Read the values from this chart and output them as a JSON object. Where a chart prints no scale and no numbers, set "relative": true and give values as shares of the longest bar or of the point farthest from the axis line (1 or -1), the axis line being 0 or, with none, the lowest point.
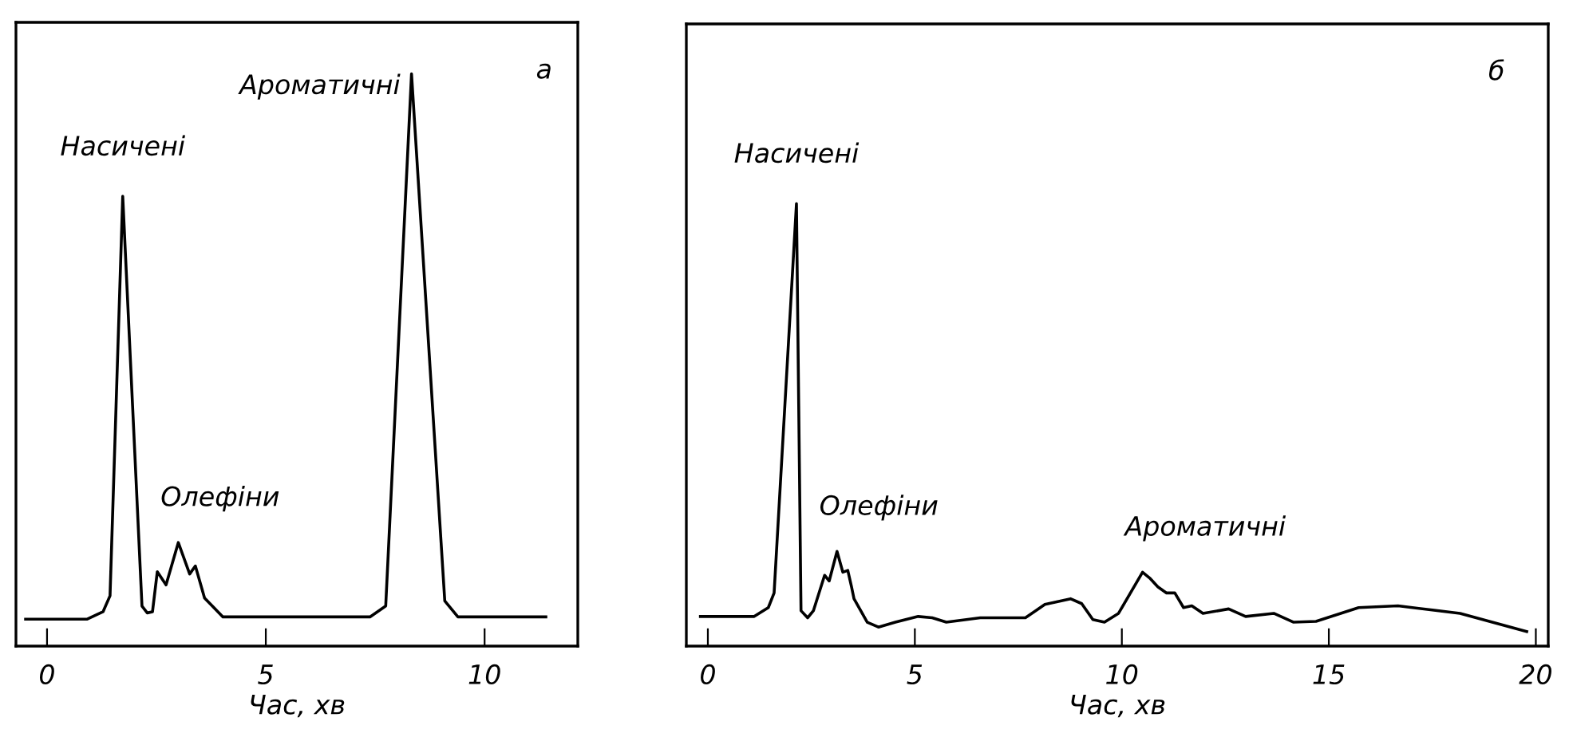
{
  "chart_data": [
    {
      "type": "line",
      "title": "а",
      "xlabel": "Час, хв",
      "relative": true,
      "xlim": [
        -0.71,
        12.13
      ],
      "xticks": [
        0,
        5,
        10
      ],
      "grid": false,
      "legend": false,
      "marker": "none",
      "line_style": "solid",
      "series": [
        {
          "color": "#000000",
          "x": [
            -0.49,
            0.91,
            1.28,
            1.44,
            1.73,
            2.17,
            2.29,
            2.41,
            2.52,
            2.72,
            3.0,
            3.26,
            3.39,
            3.6,
            4.02,
            7.38,
            7.74,
            8.33,
            9.09,
            9.39,
            11.4
          ],
          "values": [
            0.047,
            0.047,
            0.06,
            0.088,
            0.786,
            0.07,
            0.058,
            0.06,
            0.13,
            0.107,
            0.181,
            0.126,
            0.14,
            0.084,
            0.051,
            0.051,
            0.07,
            1.0,
            0.079,
            0.051,
            0.051
          ]
        }
      ],
      "annotations": [
        {
          "text": "Насичені",
          "x": 1.73,
          "y": 0.786
        },
        {
          "text": "Олефіни",
          "x": 3.0,
          "y": 0.181
        },
        {
          "text": "Ароматичні",
          "x": 8.33,
          "y": 1.0
        }
      ]
    },
    {
      "type": "line",
      "title": "б",
      "xlabel": "Час, хв",
      "relative": true,
      "xlim": [
        -0.52,
        20.3
      ],
      "xticks": [
        0,
        5,
        10,
        15,
        20
      ],
      "grid": false,
      "legend": false,
      "marker": "none",
      "line_style": "solid",
      "series": [
        {
          "color": "#000000",
          "x": [
            -0.18,
            1.12,
            1.46,
            1.6,
            2.14,
            2.25,
            2.41,
            2.55,
            2.82,
            2.93,
            3.12,
            3.26,
            3.38,
            3.47,
            3.53,
            3.85,
            4.12,
            4.53,
            5.08,
            5.42,
            5.76,
            6.58,
            7.67,
            8.14,
            8.76,
            9.03,
            9.3,
            9.58,
            9.92,
            10.5,
            10.67,
            10.87,
            11.08,
            11.28,
            11.49,
            11.69,
            11.96,
            12.58,
            12.99,
            13.67,
            14.15,
            14.69,
            15.72,
            16.67,
            18.17,
            19.78
          ],
          "values": [
            0.067,
            0.067,
            0.087,
            0.12,
            1.0,
            0.08,
            0.064,
            0.08,
            0.16,
            0.147,
            0.214,
            0.167,
            0.171,
            0.134,
            0.107,
            0.054,
            0.043,
            0.054,
            0.067,
            0.064,
            0.054,
            0.064,
            0.064,
            0.094,
            0.107,
            0.096,
            0.06,
            0.054,
            0.074,
            0.167,
            0.154,
            0.134,
            0.12,
            0.12,
            0.087,
            0.091,
            0.074,
            0.084,
            0.067,
            0.074,
            0.054,
            0.056,
            0.087,
            0.091,
            0.074,
            0.033
          ]
        }
      ],
      "annotations": [
        {
          "text": "Насичені",
          "x": 2.14,
          "y": 1.0
        },
        {
          "text": "Олефіни",
          "x": 3.12,
          "y": 0.214
        },
        {
          "text": "Ароматичні",
          "x": 10.5,
          "y": 0.167
        }
      ]
    }
  ]
}
